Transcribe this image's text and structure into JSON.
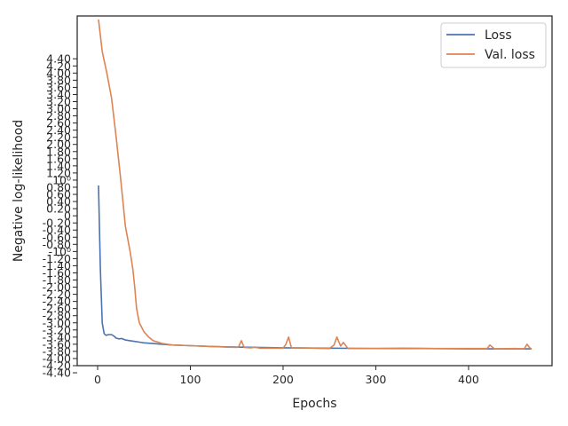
{
  "chart_data": {
    "type": "line",
    "title": "",
    "xlabel": "Epochs",
    "ylabel": "Negative log-likelihood",
    "xlim": [
      -22,
      490
    ],
    "ylim": [
      -4.2,
      5.6
    ],
    "x_ticks": [
      0,
      100,
      200,
      300,
      400
    ],
    "x_tick_labels": [
      "0",
      "100",
      "200",
      "300",
      "400"
    ],
    "y_tick_labels": [
      {
        "value": 4.4,
        "label": "4.40"
      },
      {
        "value": 4.2,
        "label": "4.20"
      },
      {
        "value": 4.0,
        "label": "4.00"
      },
      {
        "value": 3.8,
        "label": "3.80"
      },
      {
        "value": 3.6,
        "label": "3.60"
      },
      {
        "value": 3.4,
        "label": "3.40"
      },
      {
        "value": 3.2,
        "label": "3.20"
      },
      {
        "value": 3.0,
        "label": "3.00"
      },
      {
        "value": 2.8,
        "label": "2.80"
      },
      {
        "value": 2.6,
        "label": "2.60"
      },
      {
        "value": 2.4,
        "label": "2.40"
      },
      {
        "value": 2.2,
        "label": "2.20"
      },
      {
        "value": 2.0,
        "label": "2.00"
      },
      {
        "value": 1.8,
        "label": "1.80"
      },
      {
        "value": 1.6,
        "label": "1.60"
      },
      {
        "value": 1.4,
        "label": "1.40"
      },
      {
        "value": 1.2,
        "label": "1.20"
      },
      {
        "value": 1.0,
        "label": "10⁰"
      },
      {
        "value": 0.8,
        "label": "0.80"
      },
      {
        "value": 0.6,
        "label": "0.60"
      },
      {
        "value": 0.4,
        "label": "0.40"
      },
      {
        "value": 0.2,
        "label": "0.20"
      },
      {
        "value": 0.0,
        "label": "0"
      },
      {
        "value": -0.2,
        "label": "-0.20"
      },
      {
        "value": -0.4,
        "label": "-0.40"
      },
      {
        "value": -0.6,
        "label": "-0.60"
      },
      {
        "value": -0.8,
        "label": "-0.80"
      },
      {
        "value": -1.0,
        "label": "-10⁰"
      },
      {
        "value": -1.2,
        "label": "-1.20"
      },
      {
        "value": -1.4,
        "label": "-1.40"
      },
      {
        "value": -1.6,
        "label": "-1.60"
      },
      {
        "value": -1.8,
        "label": "-1.80"
      },
      {
        "value": -2.0,
        "label": "-2.00"
      },
      {
        "value": -2.2,
        "label": "-2.20"
      },
      {
        "value": -2.4,
        "label": "-2.40"
      },
      {
        "value": -2.6,
        "label": "-2.60"
      },
      {
        "value": -2.8,
        "label": "-2.80"
      },
      {
        "value": -3.0,
        "label": "-3.00"
      },
      {
        "value": -3.2,
        "label": "-3.20"
      },
      {
        "value": -3.4,
        "label": "-3.40"
      },
      {
        "value": -3.6,
        "label": "-3.60"
      },
      {
        "value": -3.8,
        "label": "-3.80"
      },
      {
        "value": -4.0,
        "label": "-4.00"
      },
      {
        "value": -4.2,
        "label": "-4.20"
      },
      {
        "value": -4.4,
        "label": "-4.40"
      }
    ],
    "series": [
      {
        "name": "Loss",
        "color": "#4c72b0",
        "x": [
          1,
          3,
          5,
          7,
          9,
          12,
          15,
          18,
          20,
          23,
          26,
          30,
          35,
          40,
          45,
          50,
          60,
          70,
          80,
          100,
          120,
          150,
          200,
          250,
          300,
          350,
          400,
          450,
          468
        ],
        "y": [
          0.85,
          -1.5,
          -3.0,
          -3.3,
          -3.35,
          -3.33,
          -3.33,
          -3.38,
          -3.43,
          -3.45,
          -3.44,
          -3.48,
          -3.5,
          -3.52,
          -3.54,
          -3.56,
          -3.58,
          -3.6,
          -3.62,
          -3.64,
          -3.66,
          -3.68,
          -3.7,
          -3.71,
          -3.72,
          -3.72,
          -3.73,
          -3.73,
          -3.73
        ]
      },
      {
        "name": "Val. loss",
        "color": "#dd8452",
        "x": [
          1,
          5,
          10,
          15,
          20,
          25,
          30,
          35,
          38,
          40,
          42,
          45,
          50,
          55,
          60,
          70,
          80,
          100,
          120,
          150,
          152,
          155,
          158,
          165,
          170,
          175,
          200,
          203,
          206,
          209,
          215,
          250,
          255,
          258,
          262,
          265,
          270,
          280,
          300,
          330,
          360,
          400,
          420,
          423,
          428,
          450,
          460,
          463,
          466,
          468
        ],
        "y": [
          5.5,
          4.6,
          4.0,
          3.3,
          2.2,
          1.0,
          -0.3,
          -1.0,
          -1.5,
          -2.0,
          -2.6,
          -3.0,
          -3.25,
          -3.4,
          -3.5,
          -3.58,
          -3.62,
          -3.64,
          -3.66,
          -3.69,
          -3.67,
          -3.5,
          -3.69,
          -3.7,
          -3.68,
          -3.71,
          -3.71,
          -3.6,
          -3.4,
          -3.7,
          -3.7,
          -3.72,
          -3.62,
          -3.4,
          -3.65,
          -3.55,
          -3.72,
          -3.72,
          -3.72,
          -3.71,
          -3.72,
          -3.72,
          -3.72,
          -3.62,
          -3.73,
          -3.72,
          -3.73,
          -3.6,
          -3.7,
          -3.73
        ]
      }
    ],
    "legend": {
      "position": "top-right"
    },
    "grid": false
  }
}
